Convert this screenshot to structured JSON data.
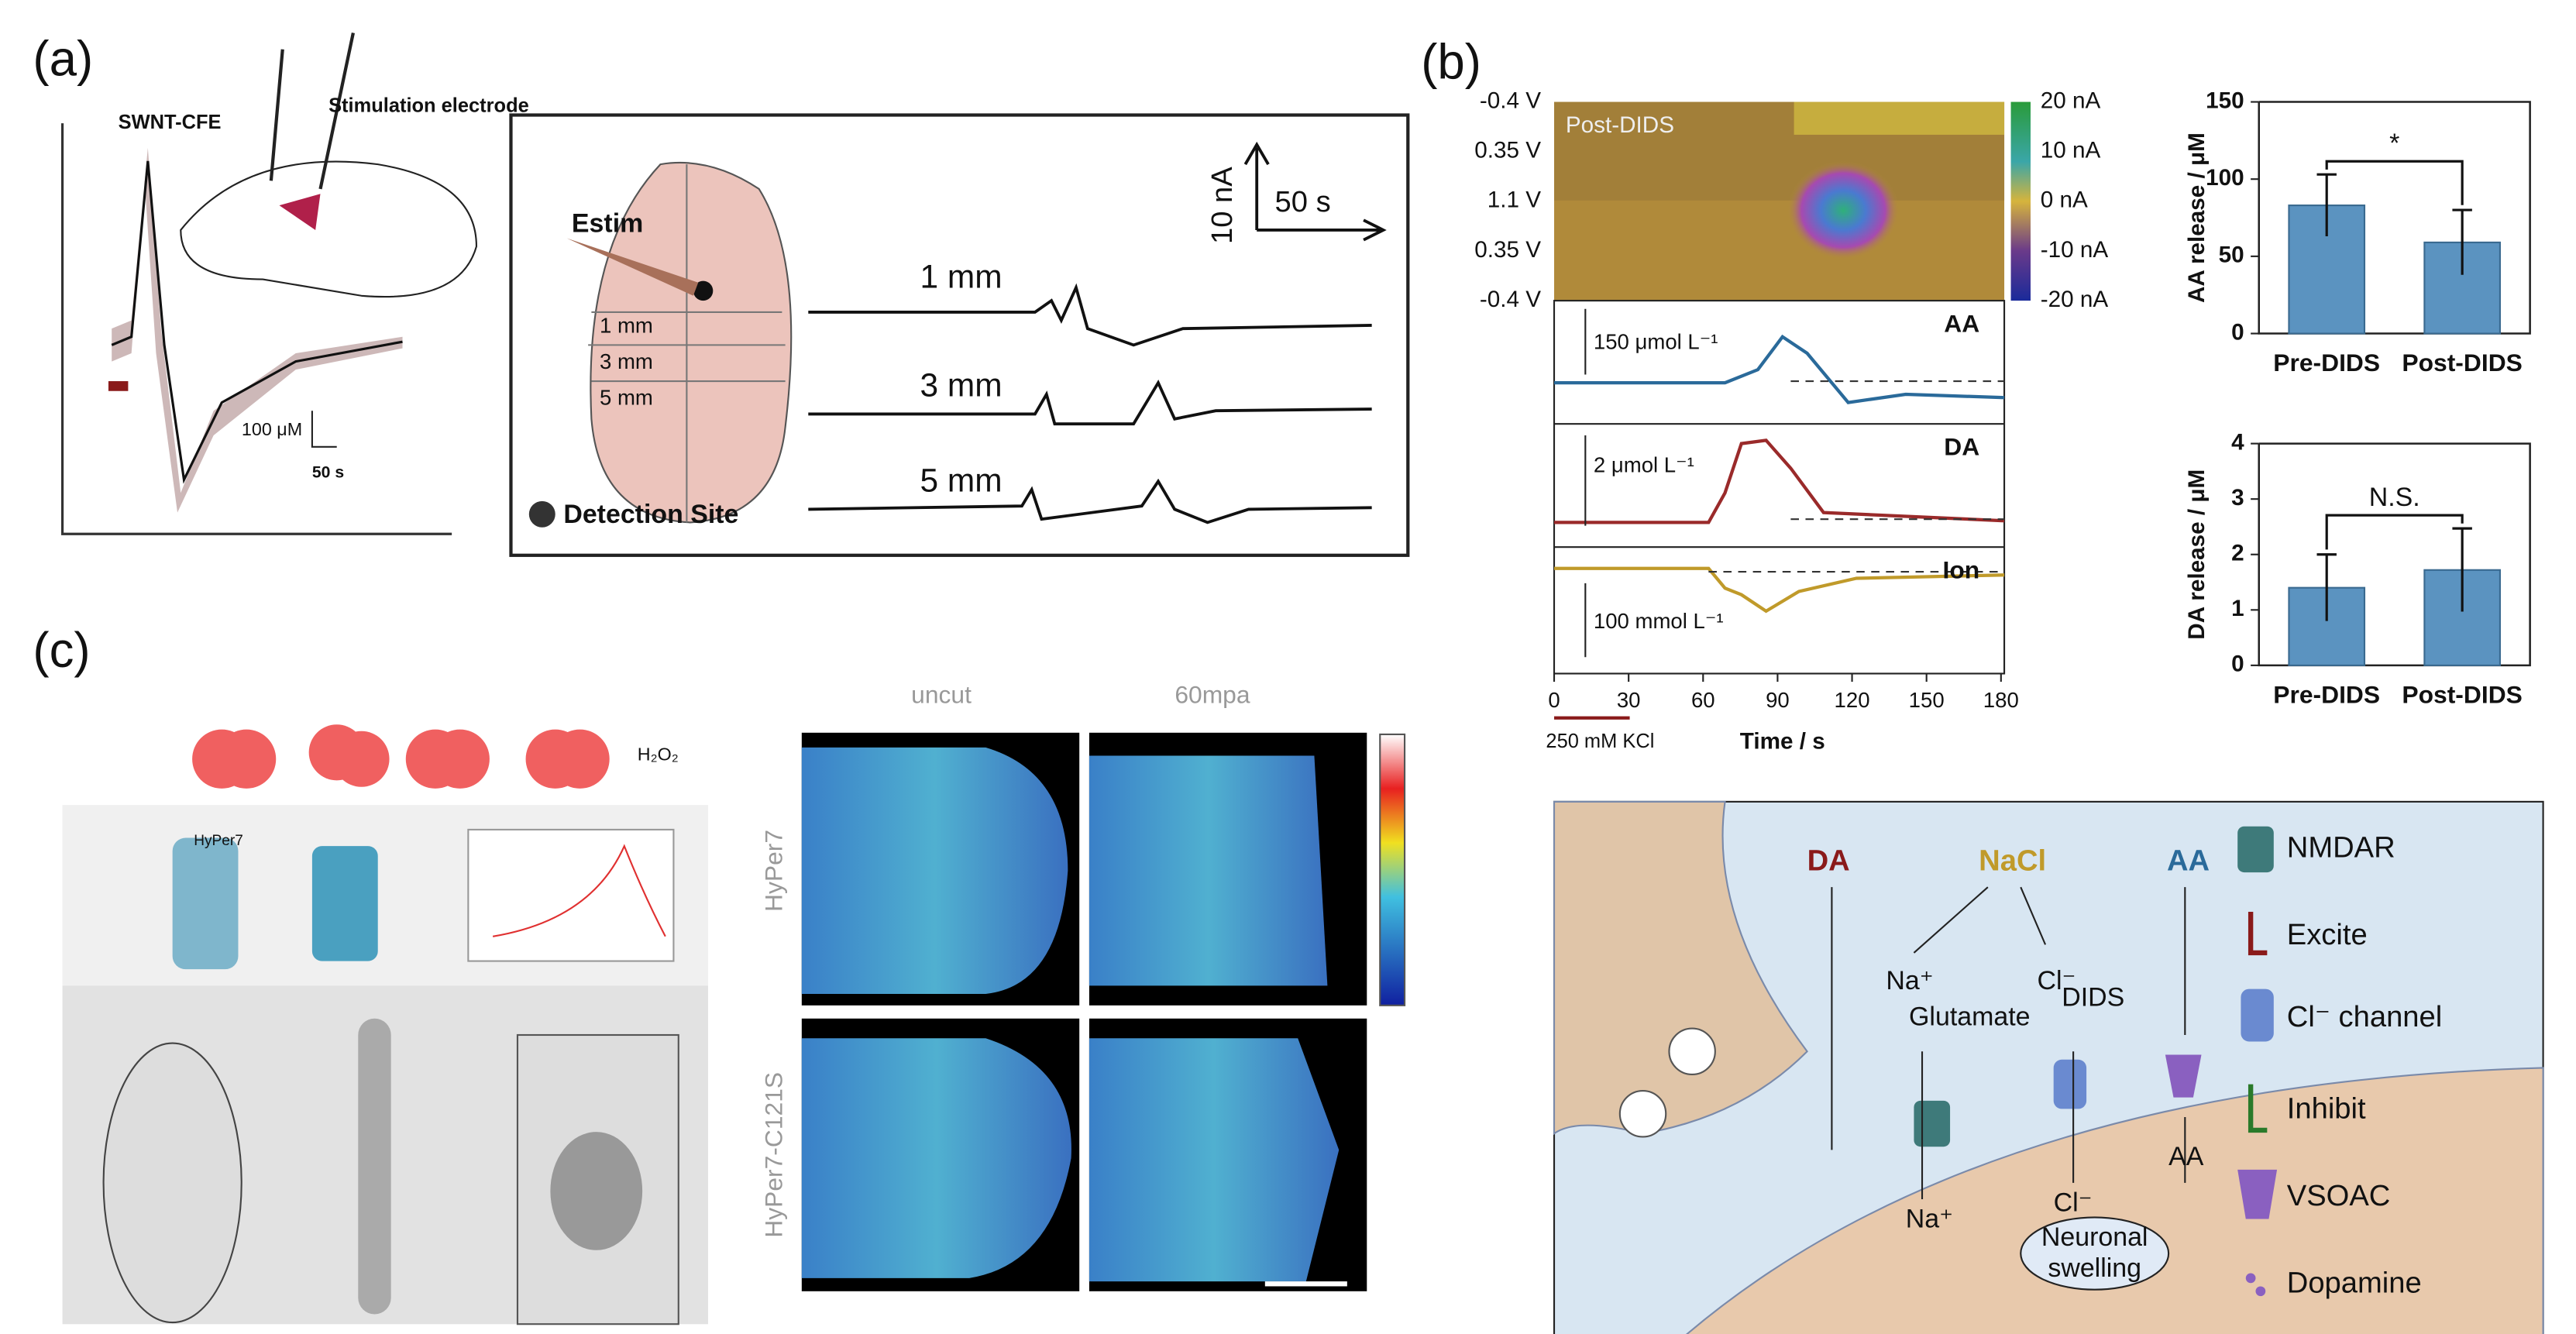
{
  "panel_a": {
    "label": "(a)",
    "probe": "SWNT-CFE",
    "electrode": "Stimulation electrode",
    "scale_y": "100 μM",
    "scale_x": "50 s",
    "estim": "Estim",
    "depths": [
      "1 mm",
      "3 mm",
      "5 mm"
    ],
    "detection": "Detection Site",
    "trace_scale_y": "10 nA",
    "trace_scale_x": "50 s"
  },
  "panel_b": {
    "label": "(b)",
    "heatmap_title": "Post-DIDS",
    "potentials": [
      "-0.4 V",
      "0.35 V",
      "1.1 V",
      "0.35 V",
      "-0.4 V"
    ],
    "colorbar": [
      "20 nA",
      "10 nA",
      "0 nA",
      "-10 nA",
      "-20 nA"
    ],
    "traces": [
      {
        "name": "AA",
        "scale": "150 μmol L⁻¹"
      },
      {
        "name": "DA",
        "scale": "2 μmol L⁻¹"
      },
      {
        "name": "Ion",
        "scale": "100 mmol L⁻¹"
      }
    ],
    "time_axis": {
      "label": "Time / s",
      "xlim": [
        0,
        180
      ],
      "xticks": [
        0,
        30,
        60,
        90,
        120,
        150,
        180
      ]
    },
    "stimulus": "250 mM KCl"
  },
  "chart_data": [
    {
      "type": "bar",
      "ylabel": "AA release / μM",
      "categories": [
        "Pre-DIDS",
        "Post-DIDS"
      ],
      "values": [
        83,
        59
      ],
      "errors": [
        20,
        21
      ],
      "color": "#5b93c0",
      "ylim": [
        0,
        150
      ],
      "yticks": [
        0,
        50,
        100,
        150
      ],
      "annotation": "*"
    },
    {
      "type": "bar",
      "ylabel": "DA release / μM",
      "categories": [
        "Pre-DIDS",
        "Post-DIDS"
      ],
      "values": [
        1.4,
        1.72
      ],
      "errors": [
        0.6,
        0.75
      ],
      "color": "#5b93c0",
      "ylim": [
        0,
        4
      ],
      "yticks": [
        0,
        1,
        2,
        3,
        4
      ],
      "annotation": "N.S."
    }
  ],
  "panel_c": {
    "label": "(c)",
    "molecule": "H₂O₂",
    "sensor": "HyPer7",
    "columns": [
      "uncut",
      "60mpa"
    ],
    "rows": [
      "HyPer7",
      "HyPer7-C121S"
    ]
  },
  "schematic": {
    "labels": [
      "DA",
      "NaCl",
      "AA"
    ],
    "na_in": "Na⁺",
    "cl_in": "Cl⁻",
    "glutamate": "Glutamate",
    "dids": "DIDS",
    "na_out": "Na⁺",
    "cl_out": "Cl⁻",
    "aa_out": "AA",
    "swelling": [
      "Neuronal",
      "swelling"
    ],
    "legend": [
      "NMDAR",
      "Excite",
      "Cl⁻ channel",
      "Inhibit",
      "VSOAC",
      "Dopamine"
    ]
  }
}
